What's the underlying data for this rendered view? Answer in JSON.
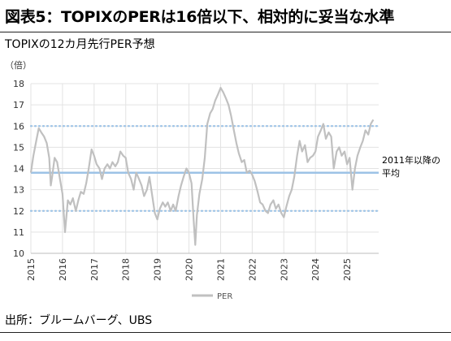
{
  "header": {
    "title": "図表5：TOPIXのPERは16倍以下、相対的に妥当な水準",
    "subtitle": "TOPIXの12カ月先行PER予想"
  },
  "footer": {
    "source": "出所：ブルームバーグ、UBS"
  },
  "colors": {
    "series": "#c0c0c0",
    "average_line": "#9dc3e6",
    "band_lines": "#9dc3e6",
    "grid": "#e3e3e3"
  },
  "chart_data": {
    "type": "line",
    "ylabel": "（倍）",
    "ylim": [
      10,
      18
    ],
    "yticks": [
      10,
      11,
      12,
      13,
      14,
      15,
      16,
      17,
      18
    ],
    "xticks": [
      "2015",
      "2016",
      "2017",
      "2018",
      "2019",
      "2020",
      "2021",
      "2022",
      "2023",
      "2024",
      "2025"
    ],
    "xlim": [
      2015.0,
      2026.0
    ],
    "grid": true,
    "legend_position": "bottom",
    "series": [
      {
        "name": "PER",
        "x": [
          2015.0,
          2015.08,
          2015.17,
          2015.25,
          2015.33,
          2015.42,
          2015.5,
          2015.58,
          2015.63,
          2015.67,
          2015.75,
          2015.83,
          2015.92,
          2016.0,
          2016.08,
          2016.17,
          2016.25,
          2016.33,
          2016.42,
          2016.5,
          2016.58,
          2016.67,
          2016.75,
          2016.83,
          2016.92,
          2017.0,
          2017.08,
          2017.17,
          2017.25,
          2017.33,
          2017.42,
          2017.5,
          2017.58,
          2017.67,
          2017.75,
          2017.83,
          2017.92,
          2018.0,
          2018.08,
          2018.17,
          2018.25,
          2018.33,
          2018.42,
          2018.5,
          2018.58,
          2018.67,
          2018.75,
          2018.83,
          2018.92,
          2019.0,
          2019.08,
          2019.17,
          2019.25,
          2019.33,
          2019.42,
          2019.5,
          2019.58,
          2019.67,
          2019.75,
          2019.83,
          2019.92,
          2020.0,
          2020.08,
          2020.15,
          2020.2,
          2020.25,
          2020.33,
          2020.42,
          2020.5,
          2020.58,
          2020.67,
          2020.75,
          2020.83,
          2020.92,
          2021.0,
          2021.08,
          2021.17,
          2021.25,
          2021.33,
          2021.42,
          2021.5,
          2021.58,
          2021.67,
          2021.75,
          2021.83,
          2021.92,
          2022.0,
          2022.08,
          2022.17,
          2022.25,
          2022.33,
          2022.42,
          2022.5,
          2022.58,
          2022.67,
          2022.75,
          2022.83,
          2022.92,
          2023.0,
          2023.08,
          2023.17,
          2023.25,
          2023.33,
          2023.42,
          2023.5,
          2023.58,
          2023.67,
          2023.75,
          2023.83,
          2023.92,
          2024.0,
          2024.08,
          2024.17,
          2024.25,
          2024.33,
          2024.42,
          2024.5,
          2024.58,
          2024.67,
          2024.75,
          2024.83,
          2024.92,
          2025.0,
          2025.08,
          2025.17,
          2025.25,
          2025.33,
          2025.42,
          2025.5,
          2025.58,
          2025.67,
          2025.75,
          2025.83
        ],
        "values": [
          13.8,
          14.6,
          15.3,
          15.9,
          15.7,
          15.5,
          15.2,
          14.5,
          13.2,
          13.6,
          14.5,
          14.3,
          13.5,
          12.8,
          11.0,
          12.5,
          12.3,
          12.6,
          12.0,
          12.5,
          12.9,
          12.8,
          13.3,
          14.0,
          14.9,
          14.6,
          14.2,
          14.0,
          13.5,
          14.0,
          14.2,
          14.0,
          14.3,
          14.1,
          14.3,
          14.8,
          14.6,
          14.5,
          13.8,
          13.5,
          13.0,
          13.8,
          13.5,
          13.2,
          12.7,
          13.0,
          13.6,
          12.8,
          11.9,
          11.6,
          12.1,
          12.4,
          12.2,
          12.4,
          12.0,
          12.3,
          12.0,
          12.7,
          13.2,
          13.6,
          14.0,
          13.8,
          13.3,
          11.5,
          10.4,
          11.8,
          12.8,
          13.5,
          14.5,
          16.1,
          16.6,
          16.8,
          17.2,
          17.5,
          17.8,
          17.6,
          17.3,
          17.0,
          16.5,
          15.8,
          15.2,
          14.7,
          14.3,
          14.4,
          13.8,
          13.9,
          13.7,
          13.4,
          12.9,
          12.4,
          12.3,
          12.0,
          11.9,
          12.3,
          12.5,
          12.1,
          12.3,
          11.9,
          11.7,
          12.2,
          12.7,
          13.0,
          13.6,
          14.6,
          15.3,
          14.8,
          15.1,
          14.3,
          14.5,
          14.6,
          14.8,
          15.5,
          15.8,
          16.1,
          15.4,
          15.7,
          15.5,
          14.0,
          14.8,
          15.0,
          14.6,
          14.8,
          14.2,
          14.5,
          13.0,
          14.0,
          14.6,
          15.0,
          15.3,
          15.8,
          15.6,
          16.1,
          16.3
        ]
      }
    ],
    "reference_lines": [
      {
        "value": 16,
        "style": "dotted"
      },
      {
        "value": 13.8,
        "style": "solid",
        "label_line1": "2011年以降の",
        "label_line2": "平均"
      },
      {
        "value": 12,
        "style": "dotted"
      }
    ]
  }
}
